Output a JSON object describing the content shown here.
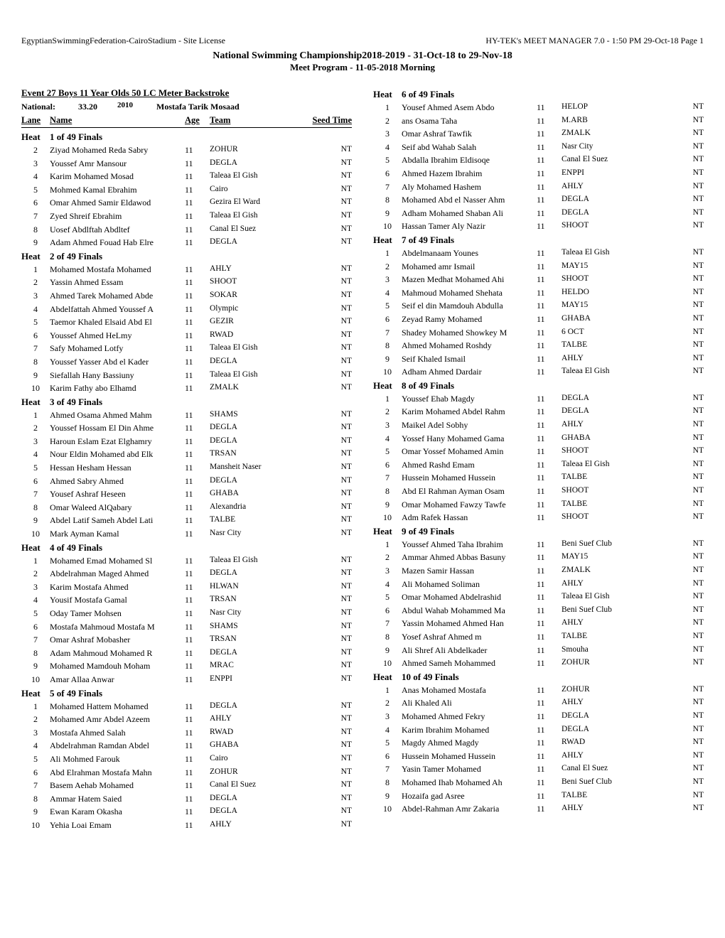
{
  "header": {
    "left": "EgyptianSwimmingFederation-CairoStadium - Site License",
    "right": "HY-TEK's MEET MANAGER 7.0 - 1:50 PM  29-Oct-18  Page 1",
    "main": "National Swimming Championship2018-2019 - 31-Oct-18 to 29-Nov-18",
    "sub": "Meet Program - 11-05-2018 Morning"
  },
  "event": {
    "title": "Event  27   Boys 11 Year Olds 50 LC Meter Backstroke",
    "record_label": "National:",
    "record_time": "33.20",
    "record_year": "2010",
    "record_holder": "Mostafa Tarik Mosaad",
    "cols": {
      "lane": "Lane",
      "name": "Name",
      "age": "Age",
      "team": "Team",
      "seed": "Seed Time"
    }
  },
  "heats_left": [
    {
      "label": "1 of 49  Finals",
      "entries": [
        {
          "lane": 2,
          "name": "Ziyad Mohamed Reda Sabry",
          "age": 11,
          "team": "ZOHUR",
          "seed": "NT"
        },
        {
          "lane": 3,
          "name": "Youssef Amr Mansour",
          "age": 11,
          "team": "DEGLA",
          "seed": "NT"
        },
        {
          "lane": 4,
          "name": "Karim Mohamed Mosad",
          "age": 11,
          "team": "Taleaa El Gish",
          "seed": "NT"
        },
        {
          "lane": 5,
          "name": "Mohmed Kamal Ebrahim",
          "age": 11,
          "team": "Cairo",
          "seed": "NT"
        },
        {
          "lane": 6,
          "name": "Omar Ahmed Samir Eldawod",
          "age": 11,
          "team": "Gezira El Ward",
          "seed": "NT"
        },
        {
          "lane": 7,
          "name": "Zyed Shreif Ebrahim",
          "age": 11,
          "team": "Taleaa El Gish",
          "seed": "NT"
        },
        {
          "lane": 8,
          "name": "Uosef Abdlftah Abdltef",
          "age": 11,
          "team": "Canal El Suez",
          "seed": "NT"
        },
        {
          "lane": 9,
          "name": "Adam Ahmed Fouad Hab Elre",
          "age": 11,
          "team": "DEGLA",
          "seed": "NT"
        }
      ]
    },
    {
      "label": "2 of 49  Finals",
      "entries": [
        {
          "lane": 1,
          "name": "Mohamed Mostafa Mohamed",
          "age": 11,
          "team": "AHLY",
          "seed": "NT"
        },
        {
          "lane": 2,
          "name": "Yassin Ahmed Essam",
          "age": 11,
          "team": "SHOOT",
          "seed": "NT"
        },
        {
          "lane": 3,
          "name": "Ahmed Tarek Mohamed Abde",
          "age": 11,
          "team": "SOKAR",
          "seed": "NT"
        },
        {
          "lane": 4,
          "name": "Abdelfattah Ahmed Youssef A",
          "age": 11,
          "team": "Olympic",
          "seed": "NT"
        },
        {
          "lane": 5,
          "name": "Taemor Khaled Elsaid Abd El",
          "age": 11,
          "team": "GEZIR",
          "seed": "NT"
        },
        {
          "lane": 6,
          "name": "Youssef Ahmed HeLmy",
          "age": 11,
          "team": "RWAD",
          "seed": "NT"
        },
        {
          "lane": 7,
          "name": "Safy Mohamed Lotfy",
          "age": 11,
          "team": "Taleaa El Gish",
          "seed": "NT"
        },
        {
          "lane": 8,
          "name": "Youssef Yasser Abd el Kader",
          "age": 11,
          "team": "DEGLA",
          "seed": "NT"
        },
        {
          "lane": 9,
          "name": "Siefallah Hany Bassiuny",
          "age": 11,
          "team": "Taleaa El Gish",
          "seed": "NT"
        },
        {
          "lane": 10,
          "name": "Karim Fathy abo Elhamd",
          "age": 11,
          "team": "ZMALK",
          "seed": "NT"
        }
      ]
    },
    {
      "label": "3 of 49  Finals",
      "entries": [
        {
          "lane": 1,
          "name": "Ahmed Osama Ahmed Mahm",
          "age": 11,
          "team": "SHAMS",
          "seed": "NT"
        },
        {
          "lane": 2,
          "name": "Youssef Hossam El Din Ahme",
          "age": 11,
          "team": "DEGLA",
          "seed": "NT"
        },
        {
          "lane": 3,
          "name": "Haroun Eslam Ezat Elghamry",
          "age": 11,
          "team": "DEGLA",
          "seed": "NT"
        },
        {
          "lane": 4,
          "name": "Nour Eldin Mohamed abd Elk",
          "age": 11,
          "team": "TRSAN",
          "seed": "NT"
        },
        {
          "lane": 5,
          "name": "Hessan Hesham Hessan",
          "age": 11,
          "team": "Mansheit Naser",
          "seed": "NT"
        },
        {
          "lane": 6,
          "name": "Ahmed Sabry Ahmed",
          "age": 11,
          "team": "DEGLA",
          "seed": "NT"
        },
        {
          "lane": 7,
          "name": "Yousef Ashraf Heseen",
          "age": 11,
          "team": "GHABA",
          "seed": "NT"
        },
        {
          "lane": 8,
          "name": "Omar Waleed AlQabary",
          "age": 11,
          "team": "Alexandria",
          "seed": "NT"
        },
        {
          "lane": 9,
          "name": "Abdel Latif Sameh Abdel Lati",
          "age": 11,
          "team": "TALBE",
          "seed": "NT"
        },
        {
          "lane": 10,
          "name": "Mark Ayman Kamal",
          "age": 11,
          "team": "Nasr City",
          "seed": "NT"
        }
      ]
    },
    {
      "label": "4 of 49  Finals",
      "entries": [
        {
          "lane": 1,
          "name": "Mohamed Emad Mohamed Sl",
          "age": 11,
          "team": "Taleaa El Gish",
          "seed": "NT"
        },
        {
          "lane": 2,
          "name": "Abdelrahman Maged Ahmed",
          "age": 11,
          "team": "DEGLA",
          "seed": "NT"
        },
        {
          "lane": 3,
          "name": "Karim Mostafa Ahmed",
          "age": 11,
          "team": "HLWAN",
          "seed": "NT"
        },
        {
          "lane": 4,
          "name": "Yousif Mostafa Gamal",
          "age": 11,
          "team": "TRSAN",
          "seed": "NT"
        },
        {
          "lane": 5,
          "name": "Oday Tamer Mohsen",
          "age": 11,
          "team": "Nasr City",
          "seed": "NT"
        },
        {
          "lane": 6,
          "name": "Mostafa Mahmoud Mostafa M",
          "age": 11,
          "team": "SHAMS",
          "seed": "NT"
        },
        {
          "lane": 7,
          "name": "Omar Ashraf Mobasher",
          "age": 11,
          "team": "TRSAN",
          "seed": "NT"
        },
        {
          "lane": 8,
          "name": "Adam Mahmoud Mohamed R",
          "age": 11,
          "team": "DEGLA",
          "seed": "NT"
        },
        {
          "lane": 9,
          "name": "Mohamed Mamdouh Moham",
          "age": 11,
          "team": "MRAC",
          "seed": "NT"
        },
        {
          "lane": 10,
          "name": "Amar Allaa Anwar",
          "age": 11,
          "team": "ENPPI",
          "seed": "NT"
        }
      ]
    },
    {
      "label": "5 of 49  Finals",
      "entries": [
        {
          "lane": 1,
          "name": "Mohamed Hattem Mohamed",
          "age": 11,
          "team": "DEGLA",
          "seed": "NT"
        },
        {
          "lane": 2,
          "name": "Mohamed Amr Abdel Azeem",
          "age": 11,
          "team": "AHLY",
          "seed": "NT"
        },
        {
          "lane": 3,
          "name": "Mostafa Ahmed Salah",
          "age": 11,
          "team": "RWAD",
          "seed": "NT"
        },
        {
          "lane": 4,
          "name": "Abdelrahman Ramdan Abdel",
          "age": 11,
          "team": "GHABA",
          "seed": "NT"
        },
        {
          "lane": 5,
          "name": "Ali Mohmed Farouk",
          "age": 11,
          "team": "Cairo",
          "seed": "NT"
        },
        {
          "lane": 6,
          "name": "Abd Elrahman Mostafa Mahn",
          "age": 11,
          "team": "ZOHUR",
          "seed": "NT"
        },
        {
          "lane": 7,
          "name": "Basem Aehab Mohamed",
          "age": 11,
          "team": "Canal El Suez",
          "seed": "NT"
        },
        {
          "lane": 8,
          "name": "Ammar Hatem Saied",
          "age": 11,
          "team": "DEGLA",
          "seed": "NT"
        },
        {
          "lane": 9,
          "name": "Ewan Karam Okasha",
          "age": 11,
          "team": "DEGLA",
          "seed": "NT"
        },
        {
          "lane": 10,
          "name": "Yehia Loai Emam",
          "age": 11,
          "team": "AHLY",
          "seed": "NT"
        }
      ]
    }
  ],
  "heats_right": [
    {
      "label": "6 of 49  Finals",
      "entries": [
        {
          "lane": 1,
          "name": "Yousef Ahmed Asem Abdo",
          "age": 11,
          "team": "HELOP",
          "seed": "NT"
        },
        {
          "lane": 2,
          "name": "ans Osama Taha",
          "age": 11,
          "team": "M.ARB",
          "seed": "NT"
        },
        {
          "lane": 3,
          "name": "Omar Ashraf Tawfik",
          "age": 11,
          "team": "ZMALK",
          "seed": "NT"
        },
        {
          "lane": 4,
          "name": "Seif abd Wahab Salah",
          "age": 11,
          "team": "Nasr City",
          "seed": "NT"
        },
        {
          "lane": 5,
          "name": "Abdalla Ibrahim Eldisoqe",
          "age": 11,
          "team": "Canal El Suez",
          "seed": "NT"
        },
        {
          "lane": 6,
          "name": "Ahmed Hazem Ibrahim",
          "age": 11,
          "team": "ENPPI",
          "seed": "NT"
        },
        {
          "lane": 7,
          "name": "Aly Mohamed Hashem",
          "age": 11,
          "team": "AHLY",
          "seed": "NT"
        },
        {
          "lane": 8,
          "name": "Mohamed Abd el Nasser Ahm",
          "age": 11,
          "team": "DEGLA",
          "seed": "NT"
        },
        {
          "lane": 9,
          "name": "Adham Mohamed Shaban Ali",
          "age": 11,
          "team": "DEGLA",
          "seed": "NT"
        },
        {
          "lane": 10,
          "name": "Hassan Tamer Aly Nazir",
          "age": 11,
          "team": "SHOOT",
          "seed": "NT"
        }
      ]
    },
    {
      "label": "7 of 49  Finals",
      "entries": [
        {
          "lane": 1,
          "name": "Abdelmanaam Younes",
          "age": 11,
          "team": "Taleaa El Gish",
          "seed": "NT"
        },
        {
          "lane": 2,
          "name": "Mohamed amr Ismail",
          "age": 11,
          "team": "MAY15",
          "seed": "NT"
        },
        {
          "lane": 3,
          "name": "Mazen Medhat Mohamed Ahi",
          "age": 11,
          "team": "SHOOT",
          "seed": "NT"
        },
        {
          "lane": 4,
          "name": "Mahmoud Mohamed Shehata",
          "age": 11,
          "team": "HELDO",
          "seed": "NT"
        },
        {
          "lane": 5,
          "name": "Seif el din Mamdouh Abdulla",
          "age": 11,
          "team": "MAY15",
          "seed": "NT"
        },
        {
          "lane": 6,
          "name": "Zeyad Ramy Mohamed",
          "age": 11,
          "team": "GHABA",
          "seed": "NT"
        },
        {
          "lane": 7,
          "name": "Shadey Mohamed Showkey M",
          "age": 11,
          "team": "6 OCT",
          "seed": "NT"
        },
        {
          "lane": 8,
          "name": "Ahmed Mohamed Roshdy",
          "age": 11,
          "team": "TALBE",
          "seed": "NT"
        },
        {
          "lane": 9,
          "name": "Seif Khaled Ismail",
          "age": 11,
          "team": "AHLY",
          "seed": "NT"
        },
        {
          "lane": 10,
          "name": "Adham Ahmed Dardair",
          "age": 11,
          "team": "Taleaa El Gish",
          "seed": "NT"
        }
      ]
    },
    {
      "label": "8 of 49  Finals",
      "entries": [
        {
          "lane": 1,
          "name": "Youssef Ehab Magdy",
          "age": 11,
          "team": "DEGLA",
          "seed": "NT"
        },
        {
          "lane": 2,
          "name": "Karim Mohamed Abdel Rahm",
          "age": 11,
          "team": "DEGLA",
          "seed": "NT"
        },
        {
          "lane": 3,
          "name": "Maikel Adel Sobhy",
          "age": 11,
          "team": "AHLY",
          "seed": "NT"
        },
        {
          "lane": 4,
          "name": "Yossef Hany Mohamed Gama",
          "age": 11,
          "team": "GHABA",
          "seed": "NT"
        },
        {
          "lane": 5,
          "name": "Omar Yossef Mohamed Amin",
          "age": 11,
          "team": "SHOOT",
          "seed": "NT"
        },
        {
          "lane": 6,
          "name": "Ahmed Rashd Emam",
          "age": 11,
          "team": "Taleaa El Gish",
          "seed": "NT"
        },
        {
          "lane": 7,
          "name": "Hussein Mohamed Hussein",
          "age": 11,
          "team": "TALBE",
          "seed": "NT"
        },
        {
          "lane": 8,
          "name": "Abd El Rahman Ayman Osam",
          "age": 11,
          "team": "SHOOT",
          "seed": "NT"
        },
        {
          "lane": 9,
          "name": "Omar Mohamed Fawzy Tawfe",
          "age": 11,
          "team": "TALBE",
          "seed": "NT"
        },
        {
          "lane": 10,
          "name": "Adm Rafek Hassan",
          "age": 11,
          "team": "SHOOT",
          "seed": "NT"
        }
      ]
    },
    {
      "label": "9 of 49  Finals",
      "entries": [
        {
          "lane": 1,
          "name": "Youssef Ahmed Taha Ibrahim",
          "age": 11,
          "team": "Beni Suef Club",
          "seed": "NT"
        },
        {
          "lane": 2,
          "name": "Ammar Ahmed Abbas Basuny",
          "age": 11,
          "team": "MAY15",
          "seed": "NT"
        },
        {
          "lane": 3,
          "name": "Mazen Samir Hassan",
          "age": 11,
          "team": "ZMALK",
          "seed": "NT"
        },
        {
          "lane": 4,
          "name": "Ali Mohamed Soliman",
          "age": 11,
          "team": "AHLY",
          "seed": "NT"
        },
        {
          "lane": 5,
          "name": "Omar Mohamed Abdelrashid",
          "age": 11,
          "team": "Taleaa El Gish",
          "seed": "NT"
        },
        {
          "lane": 6,
          "name": "Abdul Wahab Mohammed Ma",
          "age": 11,
          "team": "Beni Suef Club",
          "seed": "NT"
        },
        {
          "lane": 7,
          "name": "Yassin Mohamed Ahmed Han",
          "age": 11,
          "team": "AHLY",
          "seed": "NT"
        },
        {
          "lane": 8,
          "name": "Yosef Ashraf Ahmed    m",
          "age": 11,
          "team": "TALBE",
          "seed": "NT"
        },
        {
          "lane": 9,
          "name": "Ali Shref Ali Abdelkader",
          "age": 11,
          "team": "Smouha",
          "seed": "NT"
        },
        {
          "lane": 10,
          "name": "Ahmed Sameh Mohammed",
          "age": 11,
          "team": "ZOHUR",
          "seed": "NT"
        }
      ]
    },
    {
      "label": "10 of 49  Finals",
      "entries": [
        {
          "lane": 1,
          "name": "Anas Mohamed Mostafa",
          "age": 11,
          "team": "ZOHUR",
          "seed": "NT"
        },
        {
          "lane": 2,
          "name": "Ali Khaled Ali",
          "age": 11,
          "team": "AHLY",
          "seed": "NT"
        },
        {
          "lane": 3,
          "name": "Mohamed Ahmed Fekry",
          "age": 11,
          "team": "DEGLA",
          "seed": "NT"
        },
        {
          "lane": 4,
          "name": "Karim Ibrahim Mohamed",
          "age": 11,
          "team": "DEGLA",
          "seed": "NT"
        },
        {
          "lane": 5,
          "name": "Magdy Ahmed Magdy",
          "age": 11,
          "team": "RWAD",
          "seed": "NT"
        },
        {
          "lane": 6,
          "name": "Hussein Mohamed Hussein",
          "age": 11,
          "team": "AHLY",
          "seed": "NT"
        },
        {
          "lane": 7,
          "name": "Yasin Tamer Mohamed",
          "age": 11,
          "team": "Canal El Suez",
          "seed": "NT"
        },
        {
          "lane": 8,
          "name": "Mohamed Ihab Mohamed Ah",
          "age": 11,
          "team": "Beni Suef Club",
          "seed": "NT"
        },
        {
          "lane": 9,
          "name": "Hozaifa gad Asree",
          "age": 11,
          "team": "TALBE",
          "seed": "NT"
        },
        {
          "lane": 10,
          "name": "Abdel-Rahman Amr Zakaria",
          "age": 11,
          "team": "AHLY",
          "seed": "NT"
        }
      ]
    }
  ],
  "heat_prefix": "Heat"
}
